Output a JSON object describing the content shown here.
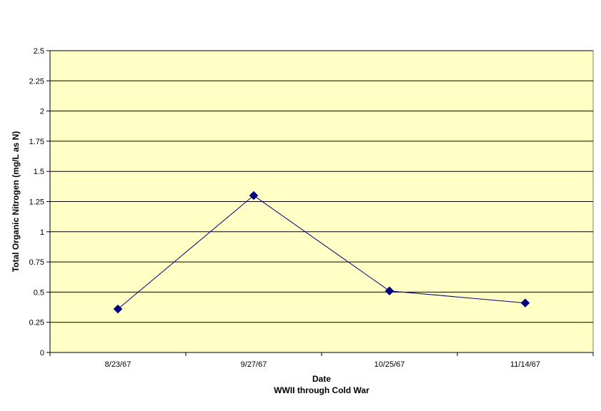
{
  "chart_data": {
    "type": "line",
    "title": "",
    "xlabel": "Date",
    "xlabel_sub": "WWII through Cold War",
    "ylabel": "Total Organic Nitrogen (mg/L as N)",
    "categories": [
      "8/23/67",
      "9/27/67",
      "10/25/67",
      "11/14/67"
    ],
    "series": [
      {
        "values": [
          0.36,
          1.3,
          0.51,
          0.41
        ]
      }
    ],
    "ylim": [
      0,
      2.5
    ],
    "yticks": [
      0,
      0.25,
      0.5,
      0.75,
      1,
      1.25,
      1.5,
      1.75,
      2,
      2.25,
      2.5
    ],
    "ytick_labels": [
      "0",
      "0.25",
      "0.5",
      "0.75",
      "1",
      "1.25",
      "1.5",
      "1.75",
      "2",
      "2.25",
      "2.5"
    ],
    "grid": true,
    "legend": "none",
    "colors": {
      "plot_background": "#ffffc6",
      "line": "#000080",
      "marker": "#000080",
      "gridline": "#000000"
    },
    "marker": "diamond"
  }
}
